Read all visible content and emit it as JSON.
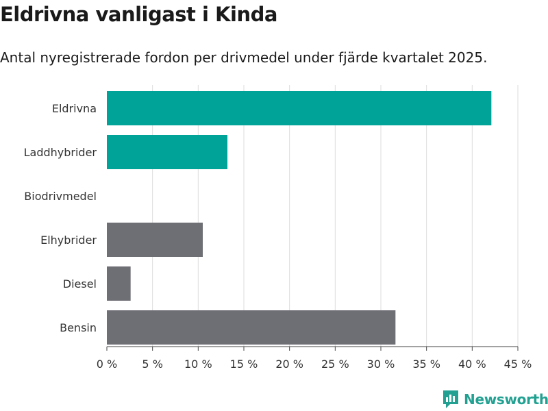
{
  "header": {
    "title": "Eldrivna vanligast i Kinda",
    "subtitle": "Antal nyregistrerade fordon per drivmedel under fjärde kvartalet 2025."
  },
  "brand": {
    "name": "Newsworthy",
    "color": "#22a192"
  },
  "chart_data": {
    "type": "bar",
    "orientation": "horizontal",
    "title": "Eldrivna vanligast i Kinda",
    "subtitle": "Antal nyregistrerade fordon per drivmedel under fjärde kvartalet 2025.",
    "categories": [
      "Eldrivna",
      "Laddhybrider",
      "Biodrivmedel",
      "Elhybrider",
      "Diesel",
      "Bensin"
    ],
    "values": [
      42.1,
      13.2,
      0,
      10.5,
      2.6,
      31.6
    ],
    "colors": [
      "#00a398",
      "#00a398",
      "#00a398",
      "#6e6e75",
      "#6e6e75",
      "#6e6e75"
    ],
    "xlim": [
      0,
      45
    ],
    "xticks": [
      0,
      5,
      10,
      15,
      20,
      25,
      30,
      35,
      40,
      45
    ],
    "tick_labels": [
      "0 %",
      "5 %",
      "10 %",
      "15 %",
      "20 %",
      "25 %",
      "30 %",
      "35 %",
      "40 %",
      "45 %"
    ],
    "xlabel": "",
    "ylabel": "",
    "grid": true
  }
}
